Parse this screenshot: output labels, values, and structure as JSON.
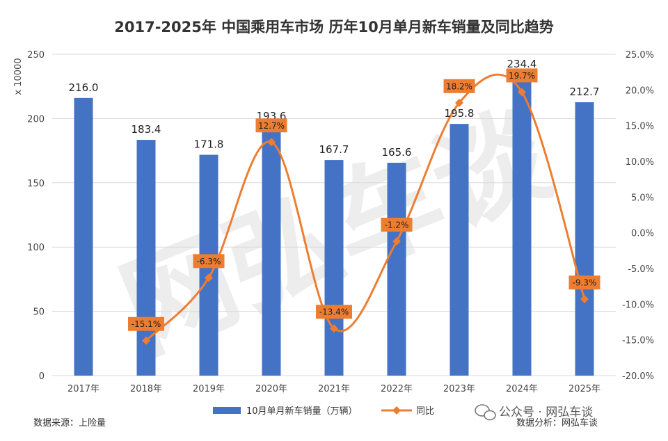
{
  "title": "2017-2025年 中国乘用车市场 历年10月单月新车销量及同比趋势",
  "footer": {
    "source": "数据来源：上险量",
    "analysis": "数据分析：网弘车谈",
    "wechat": "公众号 · 网弘车谈"
  },
  "watermark": "网弘车谈",
  "chart_data": {
    "type": "bar+line",
    "categories": [
      "2017年",
      "2018年",
      "2019年",
      "2020年",
      "2021年",
      "2022年",
      "2023年",
      "2024年",
      "2025年"
    ],
    "series": [
      {
        "name": "10月单月新车销量（万辆）",
        "type": "bar",
        "axis": "left",
        "values": [
          216.0,
          183.4,
          171.8,
          193.6,
          167.7,
          165.6,
          195.8,
          234.4,
          212.7
        ],
        "labels": [
          "216.0",
          "183.4",
          "171.8",
          "193.6",
          "167.7",
          "165.6",
          "195.8",
          "234.4",
          "212.7"
        ]
      },
      {
        "name": "同比",
        "type": "line",
        "axis": "right",
        "values": [
          null,
          -15.1,
          -6.3,
          12.7,
          -13.4,
          -1.2,
          18.2,
          19.7,
          -9.3
        ],
        "labels": [
          "",
          "-15.1%",
          "-6.3%",
          "12.7%",
          "-13.4%",
          "-1.2%",
          "18.2%",
          "19.7%",
          "-9.3%"
        ]
      }
    ],
    "y_left": {
      "label": "x 10000",
      "range": [
        0,
        250
      ],
      "ticks": [
        0,
        50,
        100,
        150,
        200,
        250
      ],
      "tick_labels": [
        "0",
        "50",
        "100",
        "150",
        "200",
        "250"
      ]
    },
    "y_right": {
      "range": [
        -20,
        25
      ],
      "ticks": [
        -20,
        -15,
        -10,
        -5,
        0,
        5,
        10,
        15,
        20,
        25
      ],
      "tick_labels": [
        "-20.0%",
        "-15.0%",
        "-10.0%",
        "-5.0%",
        "0.0%",
        "5.0%",
        "10.0%",
        "15.0%",
        "20.0%",
        "25.0%"
      ]
    },
    "grid": true,
    "legend": "bottom",
    "colors": {
      "bar": "#4472C4",
      "line": "#ED7D31",
      "label_box": "#ED7D31",
      "grid": "#D9D9D9"
    }
  }
}
